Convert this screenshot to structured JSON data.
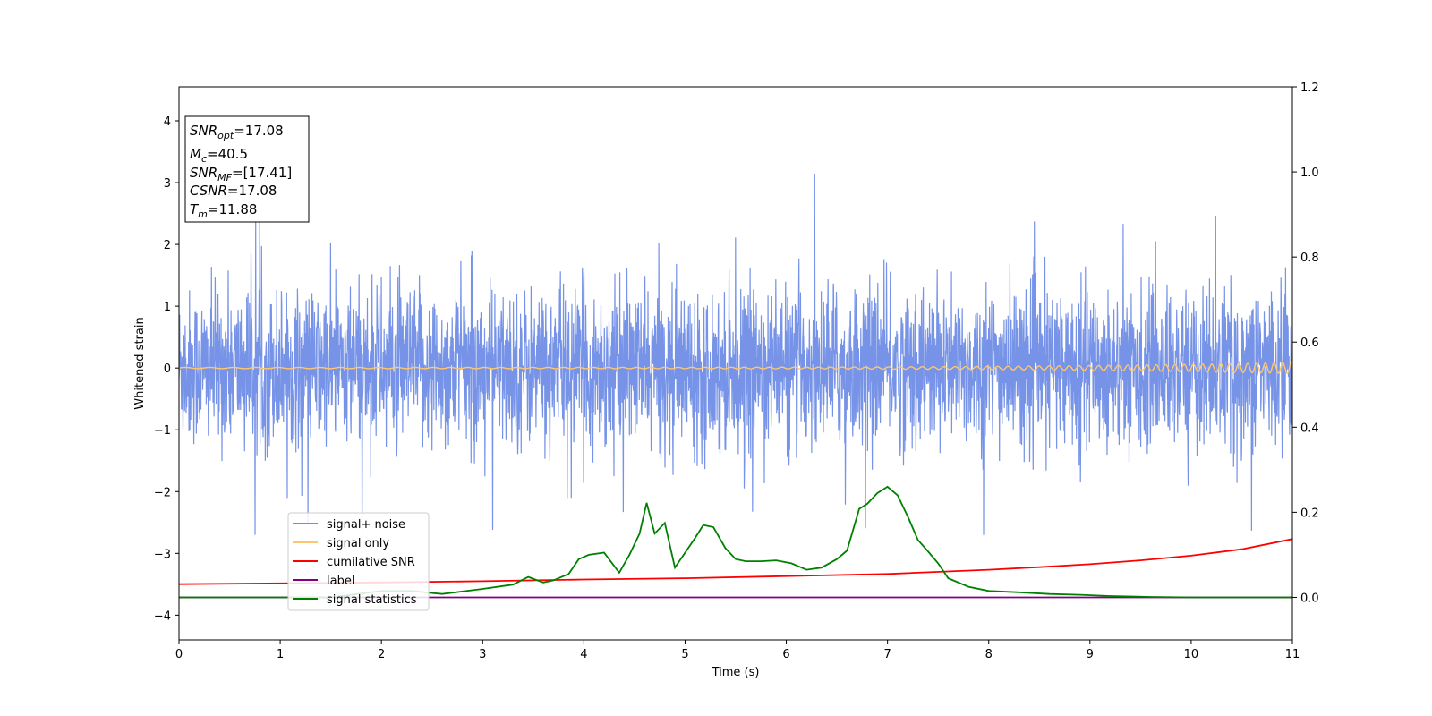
{
  "chart_data": {
    "type": "line",
    "xlabel": "Time (s)",
    "ylabel": "Whitened strain",
    "xlim": [
      0,
      11
    ],
    "ylim": [
      -4.4,
      4.55
    ],
    "y2lim": [
      -0.1,
      1.2
    ],
    "x_ticks": [
      0,
      1,
      2,
      3,
      4,
      5,
      6,
      7,
      8,
      9,
      10,
      11
    ],
    "y_ticks": [
      -4,
      -3,
      -2,
      -1,
      0,
      1,
      2,
      3,
      4
    ],
    "y2_ticks": [
      0.0,
      0.2,
      0.4,
      0.6,
      0.8,
      1.0,
      1.2
    ],
    "grid": false,
    "legend_placement": "lower-left",
    "annotation": {
      "snr_opt": {
        "symbol": "SNR",
        "sub": "opt",
        "value": "=17.08"
      },
      "mc": {
        "symbol": "M",
        "sub": "c",
        "value": "=40.5"
      },
      "snr_mf": {
        "symbol": "SNR",
        "sub": "MF",
        "value": "=[17.41]"
      },
      "csnr": {
        "symbol": "CSNR",
        "value": "=17.08"
      },
      "tm": {
        "symbol": "T",
        "sub": "m",
        "value": "=11.88"
      }
    },
    "series": [
      {
        "name": "signal+ noise",
        "axis": "left",
        "color": "#6f8de6",
        "description_values": "noise envelope",
        "envelope": {
          "typical_amplitude": 1.4,
          "peaks_max": 3.2,
          "troughs_min": -2.7
        }
      },
      {
        "name": "signal only",
        "axis": "left",
        "color": "#ffc66e",
        "chirp": {
          "start_amplitude": 0.01,
          "end_amplitude": 0.09
        }
      },
      {
        "name": "cumilative SNR",
        "axis": "right",
        "color": "#ff0000",
        "x": [
          0,
          1,
          2,
          3,
          4,
          5,
          6,
          7,
          8,
          8.5,
          9,
          9.5,
          10,
          10.5,
          11
        ],
        "y": [
          0.031,
          0.033,
          0.035,
          0.038,
          0.042,
          0.045,
          0.05,
          0.055,
          0.065,
          0.071,
          0.078,
          0.087,
          0.098,
          0.113,
          0.137
        ]
      },
      {
        "name": "label",
        "axis": "right",
        "color": "#800080",
        "x": [
          0,
          11
        ],
        "y": [
          0.0,
          0.0
        ]
      },
      {
        "name": "signal statistics",
        "axis": "right",
        "color": "#008000",
        "x": [
          0,
          1,
          1.5,
          2,
          2.3,
          2.6,
          3,
          3.3,
          3.45,
          3.6,
          3.7,
          3.85,
          3.95,
          4.05,
          4.2,
          4.35,
          4.45,
          4.55,
          4.62,
          4.7,
          4.8,
          4.9,
          5.0,
          5.1,
          5.18,
          5.28,
          5.4,
          5.5,
          5.6,
          5.75,
          5.9,
          6.05,
          6.2,
          6.35,
          6.5,
          6.6,
          6.72,
          6.8,
          6.9,
          7.0,
          7.1,
          7.2,
          7.3,
          7.4,
          7.5,
          7.6,
          7.8,
          8.0,
          8.3,
          8.6,
          8.9,
          9.2,
          9.6,
          10,
          10.5,
          11
        ],
        "y": [
          0.0,
          0.0,
          0.0,
          0.015,
          0.015,
          0.008,
          0.02,
          0.03,
          0.048,
          0.035,
          0.04,
          0.055,
          0.09,
          0.1,
          0.105,
          0.058,
          0.1,
          0.15,
          0.222,
          0.15,
          0.175,
          0.07,
          0.105,
          0.14,
          0.17,
          0.165,
          0.115,
          0.09,
          0.085,
          0.085,
          0.087,
          0.08,
          0.065,
          0.07,
          0.09,
          0.11,
          0.208,
          0.22,
          0.245,
          0.26,
          0.24,
          0.19,
          0.135,
          0.108,
          0.08,
          0.045,
          0.025,
          0.015,
          0.012,
          0.008,
          0.006,
          0.003,
          0.001,
          0.0,
          0.0,
          0.0
        ]
      }
    ]
  }
}
